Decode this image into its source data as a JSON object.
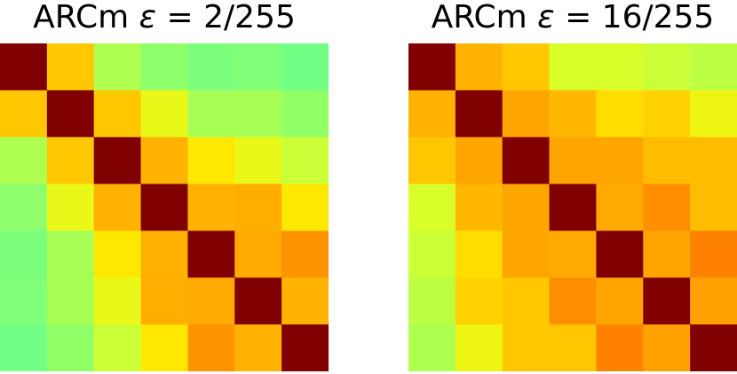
{
  "chart_data": [
    {
      "type": "heatmap",
      "title_prefix": "ARCm",
      "title_symbol": "ε",
      "title_suffix": "= 2/255",
      "rows": 7,
      "cols": 7,
      "colormap": "jet-like (green → yellow → orange → dark red)",
      "color_scale": {
        "min": 0.3,
        "max": 1.0
      },
      "values": [
        [
          1.0,
          0.66,
          0.46,
          0.41,
          0.37,
          0.38,
          0.35
        ],
        [
          0.66,
          1.0,
          0.66,
          0.55,
          0.45,
          0.45,
          0.42
        ],
        [
          0.46,
          0.66,
          1.0,
          0.7,
          0.6,
          0.55,
          0.5
        ],
        [
          0.41,
          0.55,
          0.7,
          1.0,
          0.7,
          0.71,
          0.6
        ],
        [
          0.37,
          0.45,
          0.6,
          0.7,
          1.0,
          0.72,
          0.77
        ],
        [
          0.38,
          0.45,
          0.55,
          0.71,
          0.72,
          1.0,
          0.7
        ],
        [
          0.35,
          0.42,
          0.5,
          0.6,
          0.77,
          0.7,
          1.0
        ]
      ]
    },
    {
      "type": "heatmap",
      "title_prefix": "ARCm",
      "title_symbol": "ε",
      "title_suffix": "= 16/255",
      "rows": 7,
      "cols": 7,
      "colormap": "jet-like (green → yellow → orange → dark red)",
      "color_scale": {
        "min": 0.3,
        "max": 1.0
      },
      "values": [
        [
          1.0,
          0.7,
          0.66,
          0.52,
          0.52,
          0.5,
          0.48
        ],
        [
          0.7,
          1.0,
          0.73,
          0.69,
          0.62,
          0.64,
          0.56
        ],
        [
          0.66,
          0.73,
          1.0,
          0.73,
          0.73,
          0.68,
          0.68
        ],
        [
          0.52,
          0.69,
          0.73,
          1.0,
          0.72,
          0.78,
          0.68
        ],
        [
          0.5,
          0.62,
          0.73,
          0.72,
          1.0,
          0.73,
          0.8
        ],
        [
          0.48,
          0.64,
          0.66,
          0.78,
          0.73,
          1.0,
          0.74
        ],
        [
          0.46,
          0.56,
          0.66,
          0.66,
          0.8,
          0.74,
          1.0
        ]
      ]
    }
  ]
}
